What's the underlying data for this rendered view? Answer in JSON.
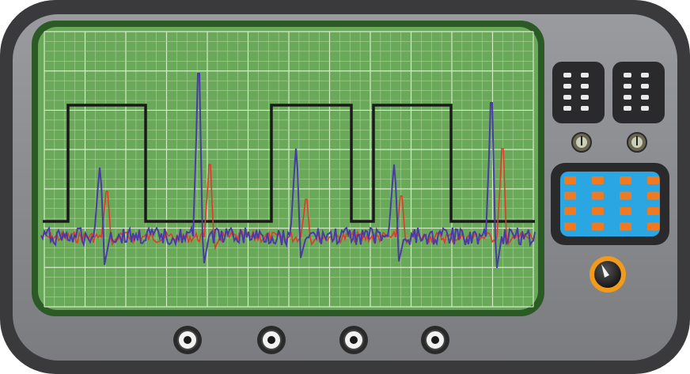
{
  "device": {
    "name": "oscilloscope",
    "colors": {
      "outer_body": "#3a3a3c",
      "panel": "#8c8d90",
      "screen_bezel": "#2c5a26",
      "screen": "#6aa85a",
      "grid_major": "#d6ecc8",
      "grid_minor": "#a9d296",
      "keypad_bg": "#2a2a2c",
      "keypad_screen": "#2aa7e2",
      "keypad_key": "#f07a22",
      "knob_ring": "#f29a1c"
    }
  },
  "screen": {
    "grid": {
      "major_divisions_x": 12,
      "major_divisions_y": 7,
      "minor_per_major": 4
    },
    "traces": [
      {
        "name": "square-wave",
        "color": "#1a1a1a"
      },
      {
        "name": "channel-a",
        "color": "#e23a2a"
      },
      {
        "name": "channel-b",
        "color": "#4a3aa8"
      }
    ]
  },
  "controls": {
    "switch_banks": [
      {
        "name": "switch-bank-left",
        "rows": 4,
        "cols": 2
      },
      {
        "name": "switch-bank-right",
        "rows": 4,
        "cols": 2
      }
    ],
    "indicators": [
      {
        "name": "indicator-left"
      },
      {
        "name": "indicator-right"
      }
    ],
    "keypad": {
      "rows": 4,
      "cols": 4
    },
    "knob": {
      "name": "main-knob"
    },
    "connectors": [
      {
        "name": "bnc-connector-1"
      },
      {
        "name": "bnc-connector-2"
      },
      {
        "name": "bnc-connector-3"
      },
      {
        "name": "bnc-connector-4"
      }
    ]
  }
}
